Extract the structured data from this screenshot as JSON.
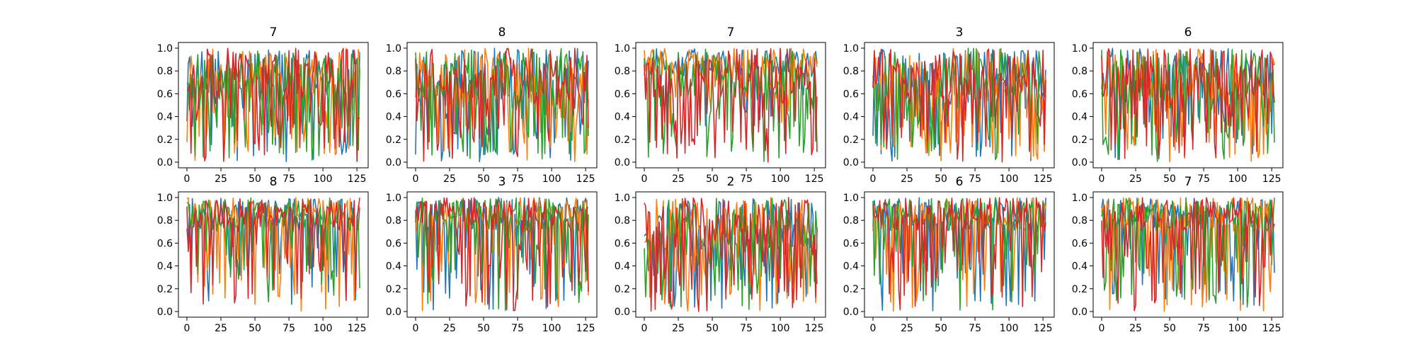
{
  "chart_data": [
    {
      "type": "line",
      "title": "7",
      "seed": 11,
      "profile": "dense",
      "ylim": [
        0,
        1.0
      ],
      "xlim": [
        0,
        127
      ]
    },
    {
      "type": "line",
      "title": "8",
      "seed": 23,
      "profile": "dense",
      "ylim": [
        0,
        1.0
      ],
      "xlim": [
        0,
        127
      ]
    },
    {
      "type": "line",
      "title": "7",
      "seed": 37,
      "profile": "sparse",
      "ylim": [
        0,
        1.0
      ],
      "xlim": [
        0,
        127
      ]
    },
    {
      "type": "line",
      "title": "3",
      "seed": 41,
      "profile": "dense",
      "ylim": [
        0,
        1.0
      ],
      "xlim": [
        0,
        127
      ]
    },
    {
      "type": "line",
      "title": "6",
      "seed": 53,
      "profile": "dense",
      "ylim": [
        0,
        1.0
      ],
      "xlim": [
        0,
        127
      ]
    },
    {
      "type": "line",
      "title": "8",
      "seed": 67,
      "profile": "high",
      "ylim": [
        0,
        1.0
      ],
      "xlim": [
        0,
        127
      ]
    },
    {
      "type": "line",
      "title": "3",
      "seed": 71,
      "profile": "high",
      "ylim": [
        0,
        1.0
      ],
      "xlim": [
        0,
        127
      ]
    },
    {
      "type": "line",
      "title": "2",
      "seed": 83,
      "profile": "dense",
      "ylim": [
        0,
        1.0
      ],
      "xlim": [
        0,
        127
      ]
    },
    {
      "type": "line",
      "title": "6",
      "seed": 97,
      "profile": "high",
      "ylim": [
        0,
        1.0
      ],
      "xlim": [
        0,
        127
      ]
    },
    {
      "type": "line",
      "title": "7",
      "seed": 101,
      "profile": "high",
      "ylim": [
        0,
        1.0
      ],
      "xlim": [
        0,
        127
      ]
    }
  ],
  "x_ticks": [
    "0",
    "25",
    "50",
    "75",
    "100",
    "125"
  ],
  "y_ticks": [
    "0.0",
    "0.2",
    "0.4",
    "0.6",
    "0.8",
    "1.0"
  ],
  "series_colors": [
    "#1f77b4",
    "#ff7f0e",
    "#2ca02c",
    "#d62728"
  ]
}
